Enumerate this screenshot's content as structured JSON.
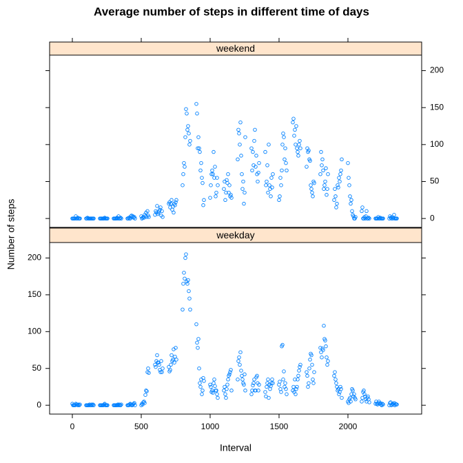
{
  "chart_data": {
    "type": "scatter",
    "title": "Average number of steps in different time of days",
    "xlabel": "Interval",
    "ylabel": "Number of steps",
    "x": [
      0,
      5,
      10,
      15,
      20,
      25,
      30,
      35,
      40,
      45,
      50,
      55,
      100,
      105,
      110,
      115,
      120,
      125,
      130,
      135,
      140,
      145,
      150,
      155,
      200,
      205,
      210,
      215,
      220,
      225,
      230,
      235,
      240,
      245,
      250,
      255,
      300,
      305,
      310,
      315,
      320,
      325,
      330,
      335,
      340,
      345,
      350,
      355,
      400,
      405,
      410,
      415,
      420,
      425,
      430,
      435,
      440,
      445,
      450,
      455,
      500,
      505,
      510,
      515,
      520,
      525,
      530,
      535,
      540,
      545,
      550,
      555,
      600,
      605,
      610,
      615,
      620,
      625,
      630,
      635,
      640,
      645,
      650,
      655,
      700,
      705,
      710,
      715,
      720,
      725,
      730,
      735,
      740,
      745,
      750,
      755,
      800,
      805,
      810,
      815,
      820,
      825,
      830,
      835,
      840,
      845,
      850,
      855,
      900,
      905,
      910,
      915,
      920,
      925,
      930,
      935,
      940,
      945,
      950,
      955,
      1000,
      1005,
      1010,
      1015,
      1020,
      1025,
      1030,
      1035,
      1040,
      1045,
      1050,
      1055,
      1100,
      1105,
      1110,
      1115,
      1120,
      1125,
      1130,
      1135,
      1140,
      1145,
      1150,
      1155,
      1200,
      1205,
      1210,
      1215,
      1220,
      1225,
      1230,
      1235,
      1240,
      1245,
      1250,
      1255,
      1300,
      1305,
      1310,
      1315,
      1320,
      1325,
      1330,
      1335,
      1340,
      1345,
      1350,
      1355,
      1400,
      1405,
      1410,
      1415,
      1420,
      1425,
      1430,
      1435,
      1440,
      1445,
      1450,
      1455,
      1500,
      1505,
      1510,
      1515,
      1520,
      1525,
      1530,
      1535,
      1540,
      1545,
      1550,
      1555,
      1600,
      1605,
      1610,
      1615,
      1620,
      1625,
      1630,
      1635,
      1640,
      1645,
      1650,
      1655,
      1700,
      1705,
      1710,
      1715,
      1720,
      1725,
      1730,
      1735,
      1740,
      1745,
      1750,
      1755,
      1800,
      1805,
      1810,
      1815,
      1820,
      1825,
      1830,
      1835,
      1840,
      1845,
      1850,
      1855,
      1900,
      1905,
      1910,
      1915,
      1920,
      1925,
      1930,
      1935,
      1940,
      1945,
      1950,
      1955,
      2000,
      2005,
      2010,
      2015,
      2020,
      2025,
      2030,
      2035,
      2040,
      2045,
      2050,
      2055,
      2100,
      2105,
      2110,
      2115,
      2120,
      2125,
      2130,
      2135,
      2140,
      2145,
      2150,
      2155,
      2200,
      2205,
      2210,
      2215,
      2220,
      2225,
      2230,
      2235,
      2240,
      2245,
      2250,
      2255,
      2300,
      2305,
      2310,
      2315,
      2320,
      2325,
      2330,
      2335,
      2340,
      2345,
      2350,
      2355
    ],
    "series": [
      {
        "name": "weekend",
        "color": "#0080ff",
        "values": [
          0,
          0,
          0,
          0,
          0,
          3,
          0,
          0,
          1,
          0,
          0,
          0,
          0,
          0,
          1,
          0,
          0,
          0,
          0,
          0,
          0,
          0,
          0,
          0,
          0,
          0,
          0,
          0,
          0,
          0,
          0,
          1,
          0,
          0,
          0,
          0,
          0,
          0,
          0,
          0,
          0,
          1,
          0,
          3,
          0,
          0,
          1,
          0,
          0,
          0,
          1,
          0,
          0,
          3,
          4,
          2,
          3,
          1,
          2,
          0,
          3,
          0,
          1,
          2,
          1,
          5,
          3,
          8,
          2,
          10,
          4,
          2,
          5,
          10,
          8,
          17,
          6,
          8,
          10,
          12,
          15,
          4,
          10,
          2,
          20,
          22,
          15,
          20,
          25,
          12,
          16,
          8,
          20,
          18,
          22,
          25,
          45,
          60,
          75,
          70,
          110,
          148,
          142,
          120,
          125,
          115,
          100,
          105,
          155,
          142,
          95,
          110,
          95,
          90,
          65,
          75,
          55,
          48,
          18,
          25,
          28,
          45,
          60,
          65,
          60,
          90,
          55,
          70,
          30,
          35,
          55,
          45,
          40,
          50,
          25,
          35,
          52,
          48,
          60,
          35,
          45,
          30,
          32,
          28,
          80,
          120,
          115,
          100,
          130,
          85,
          60,
          40,
          50,
          20,
          35,
          110,
          95,
          65,
          90,
          72,
          105,
          120,
          70,
          85,
          60,
          50,
          62,
          75,
          90,
          45,
          50,
          72,
          35,
          100,
          45,
          40,
          30,
          55,
          42,
          60,
          25,
          30,
          55,
          45,
          65,
          100,
          115,
          110,
          80,
          95,
          75,
          65,
          130,
          135,
          112,
          120,
          100,
          125,
          95,
          90,
          85,
          100,
          105,
          95,
          70,
          95,
          90,
          92,
          80,
          78,
          45,
          40,
          35,
          30,
          50,
          48,
          60,
          90,
          72,
          80,
          65,
          40,
          45,
          50,
          68,
          32,
          40,
          60,
          25,
          40,
          30,
          15,
          20,
          45,
          42,
          55,
          50,
          60,
          65,
          80,
          75,
          55,
          45,
          30,
          20,
          25,
          10,
          5,
          3,
          0,
          0,
          2,
          10,
          15,
          0,
          0,
          2,
          0,
          3,
          10,
          0,
          0,
          1,
          0,
          0,
          0,
          0,
          0,
          2,
          0,
          0,
          1,
          0,
          0,
          0,
          0,
          0,
          3,
          1,
          0,
          2,
          0,
          1,
          5,
          0,
          0,
          0,
          0
        ]
      },
      {
        "name": "weekday",
        "color": "#0080ff",
        "values": [
          2,
          0,
          0,
          0,
          0,
          2,
          1,
          1,
          0,
          1,
          0,
          1,
          0,
          0,
          0,
          0,
          0,
          1,
          0,
          0,
          1,
          0,
          1,
          0,
          0,
          0,
          0,
          0,
          0,
          0,
          1,
          2,
          0,
          0,
          0,
          0,
          0,
          0,
          0,
          0,
          0,
          0,
          1,
          0,
          1,
          0,
          0,
          1,
          0,
          0,
          0,
          1,
          2,
          1,
          0,
          0,
          1,
          2,
          3,
          0,
          0,
          2,
          1,
          4,
          5,
          3,
          14,
          20,
          19,
          45,
          50,
          44,
          55,
          52,
          60,
          68,
          58,
          58,
          55,
          48,
          45,
          60,
          45,
          50,
          52,
          46,
          48,
          55,
          68,
          60,
          62,
          76,
          58,
          66,
          78,
          62,
          130,
          165,
          180,
          172,
          200,
          205,
          168,
          165,
          170,
          155,
          145,
          130,
          110,
          85,
          78,
          90,
          50,
          30,
          25,
          35,
          15,
          20,
          37,
          33,
          28,
          25,
          18,
          20,
          17,
          30,
          35,
          26,
          20,
          20,
          15,
          10,
          20,
          25,
          15,
          10,
          22,
          28,
          35,
          40,
          42,
          45,
          48,
          20,
          35,
          60,
          65,
          55,
          72,
          47,
          40,
          35,
          30,
          28,
          42,
          20,
          15,
          20,
          27,
          30,
          35,
          20,
          20,
          38,
          40,
          30,
          20,
          28,
          18,
          12,
          25,
          30,
          35,
          10,
          28,
          22,
          26,
          30,
          35,
          30,
          28,
          32,
          22,
          18,
          80,
          82,
          35,
          46,
          25,
          30,
          22,
          15,
          20,
          25,
          18,
          35,
          15,
          22,
          25,
          35,
          40,
          47,
          52,
          55,
          45,
          40,
          25,
          30,
          50,
          62,
          70,
          68,
          55,
          35,
          30,
          45,
          78,
          72,
          65,
          77,
          75,
          108,
          90,
          88,
          80,
          65,
          55,
          60,
          40,
          45,
          35,
          30,
          25,
          20,
          22,
          15,
          18,
          25,
          22,
          10,
          5,
          3,
          8,
          10,
          5,
          15,
          22,
          20,
          12,
          15,
          10,
          8,
          5,
          10,
          18,
          20,
          15,
          12,
          8,
          5,
          10,
          12,
          8,
          4,
          2,
          5,
          2,
          1,
          3,
          5,
          2,
          3,
          1,
          0,
          2,
          1,
          0,
          3,
          4,
          0,
          1,
          2,
          1,
          3,
          0,
          2,
          1,
          1
        ]
      }
    ],
    "xlim": [
      -165,
      2535
    ],
    "ylim": [
      -12,
      221
    ],
    "xticks": [
      0,
      500,
      1000,
      1500,
      2000
    ],
    "yticks": [
      0,
      50,
      100,
      150,
      200
    ]
  }
}
